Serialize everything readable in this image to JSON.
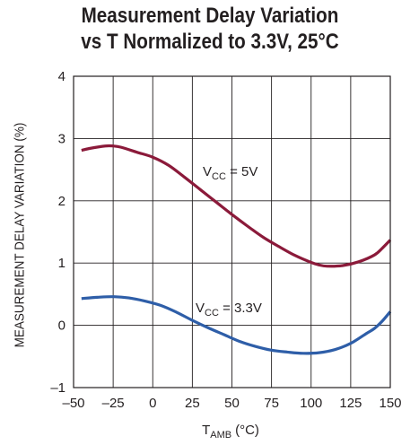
{
  "chart_data": {
    "type": "line",
    "title_line1": "Measurement Delay Variation",
    "title_line2": "vs T Normalized to 3.3V, 25°C",
    "ylabel": "MEASUREMENT DELAY VARIATION (%)",
    "xlabel_main": "T",
    "xlabel_sub": "AMB",
    "xlabel_unit": "(°C)",
    "xlim": [
      -50,
      150
    ],
    "ylim": [
      -1,
      4
    ],
    "x_ticks": [
      -50,
      -25,
      0,
      25,
      50,
      75,
      100,
      125,
      150
    ],
    "x_tick_labels": [
      "–50",
      "–25",
      "0",
      "25",
      "50",
      "75",
      "100",
      "125",
      "150"
    ],
    "y_ticks": [
      -1,
      0,
      1,
      2,
      3,
      4
    ],
    "y_tick_labels": [
      "–1",
      "0",
      "1",
      "2",
      "3",
      "4"
    ],
    "grid": true,
    "series": [
      {
        "name_main": "V",
        "name_sub": "CC",
        "name_suffix": " = 5V",
        "color": "#8b1a3a",
        "x": [
          -45,
          -40,
          -30,
          -25,
          -20,
          -10,
          0,
          10,
          20,
          30,
          40,
          50,
          60,
          70,
          80,
          90,
          100,
          105,
          110,
          120,
          130,
          140,
          145,
          150
        ],
        "y": [
          2.81,
          2.84,
          2.88,
          2.88,
          2.86,
          2.78,
          2.7,
          2.57,
          2.38,
          2.18,
          1.98,
          1.78,
          1.59,
          1.41,
          1.26,
          1.12,
          1.01,
          0.97,
          0.95,
          0.96,
          1.02,
          1.13,
          1.24,
          1.37
        ]
      },
      {
        "name_main": "V",
        "name_sub": "CC",
        "name_suffix": " = 3.3V",
        "color": "#2e5ea8",
        "x": [
          -45,
          -35,
          -25,
          -15,
          -5,
          5,
          15,
          25,
          35,
          45,
          55,
          65,
          75,
          85,
          95,
          105,
          115,
          125,
          135,
          140,
          145,
          150
        ],
        "y": [
          0.43,
          0.45,
          0.46,
          0.44,
          0.39,
          0.32,
          0.21,
          0.08,
          -0.04,
          -0.15,
          -0.26,
          -0.34,
          -0.4,
          -0.43,
          -0.45,
          -0.44,
          -0.39,
          -0.29,
          -0.13,
          -0.05,
          0.07,
          0.22
        ]
      }
    ]
  }
}
